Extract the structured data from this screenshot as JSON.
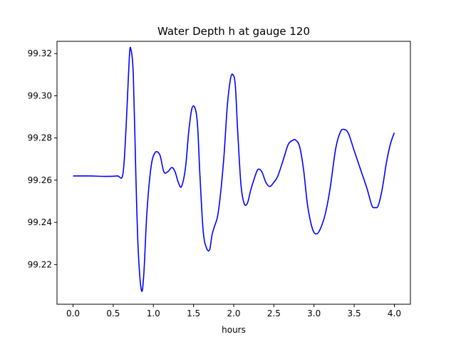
{
  "chart_data": {
    "type": "line",
    "title": "Water Depth h at gauge 120",
    "xlabel": "hours",
    "ylabel": "",
    "xlim": [
      -0.2,
      4.2
    ],
    "ylim": [
      99.2012,
      99.3258
    ],
    "xticks": [
      0.0,
      0.5,
      1.0,
      1.5,
      2.0,
      2.5,
      3.0,
      3.5,
      4.0
    ],
    "xtick_labels": [
      "0.0",
      "0.5",
      "1.0",
      "1.5",
      "2.0",
      "2.5",
      "3.0",
      "3.5",
      "4.0"
    ],
    "yticks": [
      99.22,
      99.24,
      99.26,
      99.28,
      99.3,
      99.32
    ],
    "ytick_labels": [
      "99.22",
      "99.24",
      "99.26",
      "99.28",
      "99.30",
      "99.32"
    ],
    "grid": false,
    "colors": {
      "line": "#0000ff",
      "axes": "#000000",
      "background": "#ffffff"
    },
    "series": [
      {
        "x": [
          0.0,
          0.2,
          0.4,
          0.55,
          0.62,
          0.66,
          0.7,
          0.72,
          0.75,
          0.78,
          0.81,
          0.85,
          0.88,
          0.92,
          0.97,
          1.02,
          1.08,
          1.13,
          1.18,
          1.23,
          1.27,
          1.31,
          1.35,
          1.4,
          1.44,
          1.48,
          1.52,
          1.55,
          1.58,
          1.62,
          1.66,
          1.7,
          1.73,
          1.76,
          1.8,
          1.84,
          1.88,
          1.92,
          1.96,
          1.99,
          2.02,
          2.05,
          2.09,
          2.13,
          2.17,
          2.21,
          2.25,
          2.3,
          2.35,
          2.4,
          2.45,
          2.5,
          2.55,
          2.62,
          2.68,
          2.74,
          2.77,
          2.82,
          2.87,
          2.92,
          2.98,
          3.03,
          3.08,
          3.14,
          3.2,
          3.27,
          3.33,
          3.38,
          3.43,
          3.5,
          3.58,
          3.66,
          3.72,
          3.76,
          3.8,
          3.85,
          3.9,
          3.95,
          4.0
        ],
        "y": [
          99.262,
          99.262,
          99.2618,
          99.262,
          99.2628,
          99.285,
          99.318,
          99.322,
          99.31,
          99.265,
          99.228,
          99.208,
          99.215,
          99.245,
          99.266,
          99.273,
          99.272,
          99.264,
          99.264,
          99.266,
          99.264,
          99.259,
          99.257,
          99.266,
          99.283,
          99.294,
          99.294,
          99.286,
          99.262,
          99.236,
          99.228,
          99.227,
          99.234,
          99.238,
          99.243,
          99.255,
          99.272,
          99.295,
          99.308,
          99.31,
          99.305,
          99.283,
          99.258,
          99.249,
          99.249,
          99.255,
          99.26,
          99.265,
          99.264,
          99.259,
          99.257,
          99.259,
          99.262,
          99.27,
          99.277,
          99.279,
          99.279,
          99.276,
          99.265,
          99.248,
          99.237,
          99.2345,
          99.237,
          99.244,
          99.256,
          99.275,
          99.283,
          99.284,
          99.282,
          99.274,
          99.265,
          99.256,
          99.248,
          99.247,
          99.248,
          99.256,
          99.268,
          99.277,
          99.2825
        ]
      }
    ]
  }
}
